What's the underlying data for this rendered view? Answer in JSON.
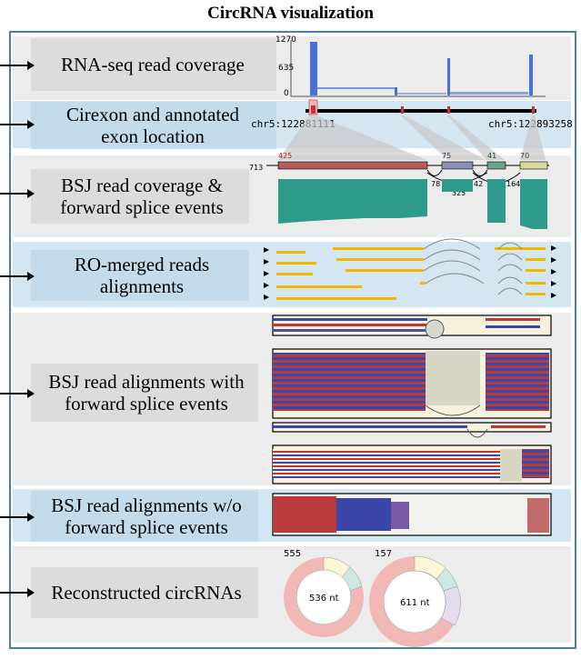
{
  "title": "CircRNA visualization",
  "panels": [
    {
      "label": "RNA-seq read coverage"
    },
    {
      "label": "Cirexon and annotated exon location"
    },
    {
      "label": "BSJ read coverage & forward splice events"
    },
    {
      "label": "RO-merged reads alignments"
    },
    {
      "label": "BSJ read alignments with forward splice events"
    },
    {
      "label": "BSJ read alignments w/o forward splice events"
    },
    {
      "label": "Reconstructed circRNAs"
    }
  ],
  "coverage": {
    "y_max": "1270",
    "y_mid": "635",
    "y_min": "0"
  },
  "location": {
    "start": "chr5:122881111",
    "end": "chr5:122893258"
  },
  "bsj_coverage": {
    "left_count": "713",
    "exon_counts": [
      "425",
      "75",
      "41",
      "70"
    ],
    "junction_counts": [
      "78",
      "325",
      "42",
      "164"
    ]
  },
  "circrnas": [
    {
      "count": "555",
      "length": "536 nt"
    },
    {
      "count": "157",
      "length": "611 nt"
    }
  ],
  "colors": {
    "frame": "#4a7fa8",
    "coverage": "#4a6fd8",
    "bsj": "#2e9a8a",
    "reads": "#f3b800",
    "ring": "#f2b8b6"
  }
}
